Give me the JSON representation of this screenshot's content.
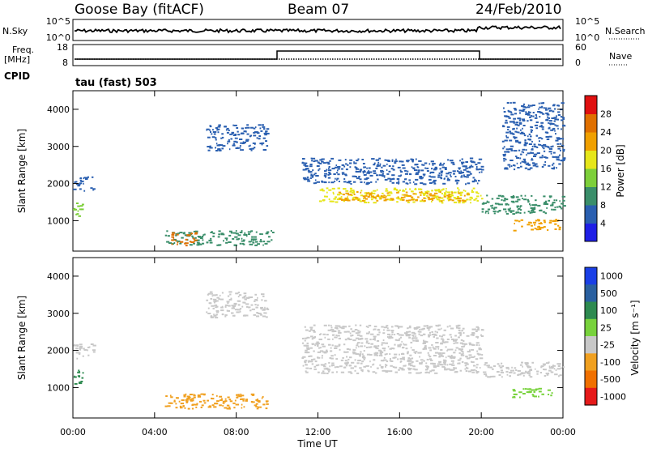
{
  "header": {
    "station": "Goose Bay (fitACF)",
    "beam": "Beam 07",
    "date": "24/Feb/2010"
  },
  "panels": {
    "nsky_label": "N.Sky",
    "nsearch_label": "N.Search",
    "freq_label_line1": "Freq.",
    "freq_label_line2": "[MHz]",
    "nave_label": "Nave",
    "cpid_label": "CPID",
    "cpid_value": "tau (fast) 503",
    "noise_ticks_left": [
      "10^5",
      "10^0"
    ],
    "noise_ticks_right": [
      "10^5",
      "10^0"
    ],
    "freq_ticks_left": [
      "18",
      "8"
    ],
    "nave_ticks_right": [
      "60",
      "0"
    ]
  },
  "chart_data": [
    {
      "type": "heatmap",
      "name": "power",
      "ylabel": "Slant Range [km]",
      "xlabel": "Time UT",
      "y_ticks": [
        "1000",
        "2000",
        "3000",
        "4000"
      ],
      "x_ticks": [
        "00:00",
        "04:00",
        "08:00",
        "12:00",
        "16:00",
        "20:00",
        "00:00"
      ],
      "colorbar_label": "Power [dB]",
      "colorbar_ticks": [
        "4",
        "8",
        "12",
        "16",
        "20",
        "24",
        "28"
      ],
      "colorbar_colors": [
        "#1f1fe6",
        "#2a5fb0",
        "#3a8e6a",
        "#7dcf3a",
        "#e6e61a",
        "#f0a000",
        "#e07000",
        "#e01010"
      ],
      "ylim": [
        180,
        4500
      ],
      "xlim": [
        0,
        24
      ],
      "regions": [
        {
          "t": [
            0.0,
            1.0
          ],
          "r": [
            1800,
            2200
          ],
          "level": 1
        },
        {
          "t": [
            0.0,
            0.5
          ],
          "r": [
            1100,
            1500
          ],
          "level": 3
        },
        {
          "t": [
            4.5,
            9.8
          ],
          "r": [
            350,
            750
          ],
          "level": 2
        },
        {
          "t": [
            4.8,
            6.0
          ],
          "r": [
            350,
            700
          ],
          "level": 6
        },
        {
          "t": [
            6.5,
            9.5
          ],
          "r": [
            2900,
            3600
          ],
          "level": 1
        },
        {
          "t": [
            11.2,
            20.0
          ],
          "r": [
            2000,
            2700
          ],
          "level": 1
        },
        {
          "t": [
            12.0,
            20.0
          ],
          "r": [
            1500,
            1900
          ],
          "level": 4
        },
        {
          "t": [
            13.0,
            19.5
          ],
          "r": [
            1550,
            1800
          ],
          "level": 5
        },
        {
          "t": [
            20.0,
            24.0
          ],
          "r": [
            1200,
            1700
          ],
          "level": 2
        },
        {
          "t": [
            21.5,
            23.8
          ],
          "r": [
            750,
            1050
          ],
          "level": 5
        },
        {
          "t": [
            21.0,
            24.0
          ],
          "r": [
            2400,
            4200
          ],
          "level": 1
        }
      ]
    },
    {
      "type": "heatmap",
      "name": "velocity",
      "ylabel": "Slant Range [km]",
      "xlabel": "Time UT",
      "y_ticks": [
        "1000",
        "2000",
        "3000",
        "4000"
      ],
      "x_ticks": [
        "00:00",
        "04:00",
        "08:00",
        "12:00",
        "16:00",
        "20:00",
        "00:00"
      ],
      "colorbar_label": "Velocity [m s⁻¹]",
      "colorbar_ticks": [
        "1000",
        "500",
        "100",
        "25",
        "-25",
        "-100",
        "-500",
        "-1000"
      ],
      "colorbar_colors": [
        "#1a3fe6",
        "#2a60a0",
        "#2e8a50",
        "#78d23c",
        "#c8c8c8",
        "#f0a020",
        "#f07000",
        "#e61a1a"
      ],
      "ylim": [
        180,
        4500
      ],
      "xlim": [
        0,
        24
      ],
      "regions": [
        {
          "t": [
            0.0,
            1.0
          ],
          "r": [
            1800,
            2200
          ],
          "level": 4
        },
        {
          "t": [
            0.0,
            0.5
          ],
          "r": [
            1100,
            1500
          ],
          "level": 2
        },
        {
          "t": [
            4.5,
            9.5
          ],
          "r": [
            450,
            850
          ],
          "level": 5
        },
        {
          "t": [
            6.5,
            9.5
          ],
          "r": [
            2900,
            3600
          ],
          "level": 4
        },
        {
          "t": [
            11.2,
            20.0
          ],
          "r": [
            1400,
            2700
          ],
          "level": 4
        },
        {
          "t": [
            20.0,
            24.0
          ],
          "r": [
            1300,
            1700
          ],
          "level": 4
        },
        {
          "t": [
            21.5,
            23.5
          ],
          "r": [
            750,
            1000
          ],
          "level": 3
        }
      ]
    }
  ]
}
